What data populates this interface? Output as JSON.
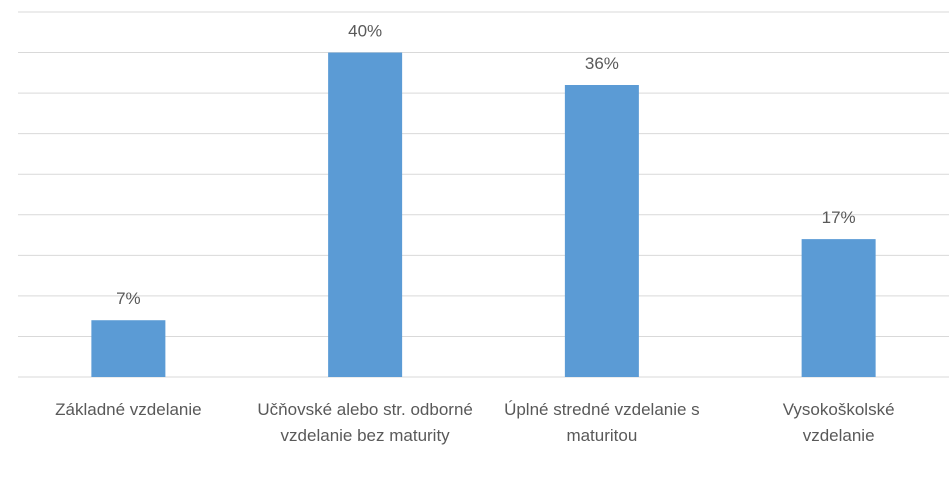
{
  "chart_data": {
    "type": "bar",
    "categories": [
      "Základné vzdelanie",
      "Učňovské alebo str. odborné vzdelanie bez maturity",
      "Úplné stredné vzdelanie s maturitou",
      "Vysokoškolské vzdelanie"
    ],
    "values": [
      7,
      40,
      36,
      17
    ],
    "value_labels": [
      "7%",
      "40%",
      "36%",
      "17%"
    ],
    "color": "#5b9bd5",
    "ylim": [
      0,
      45
    ],
    "yticks": [
      0,
      5,
      10,
      15,
      20,
      25,
      30,
      35,
      40,
      45
    ],
    "grid": true
  }
}
